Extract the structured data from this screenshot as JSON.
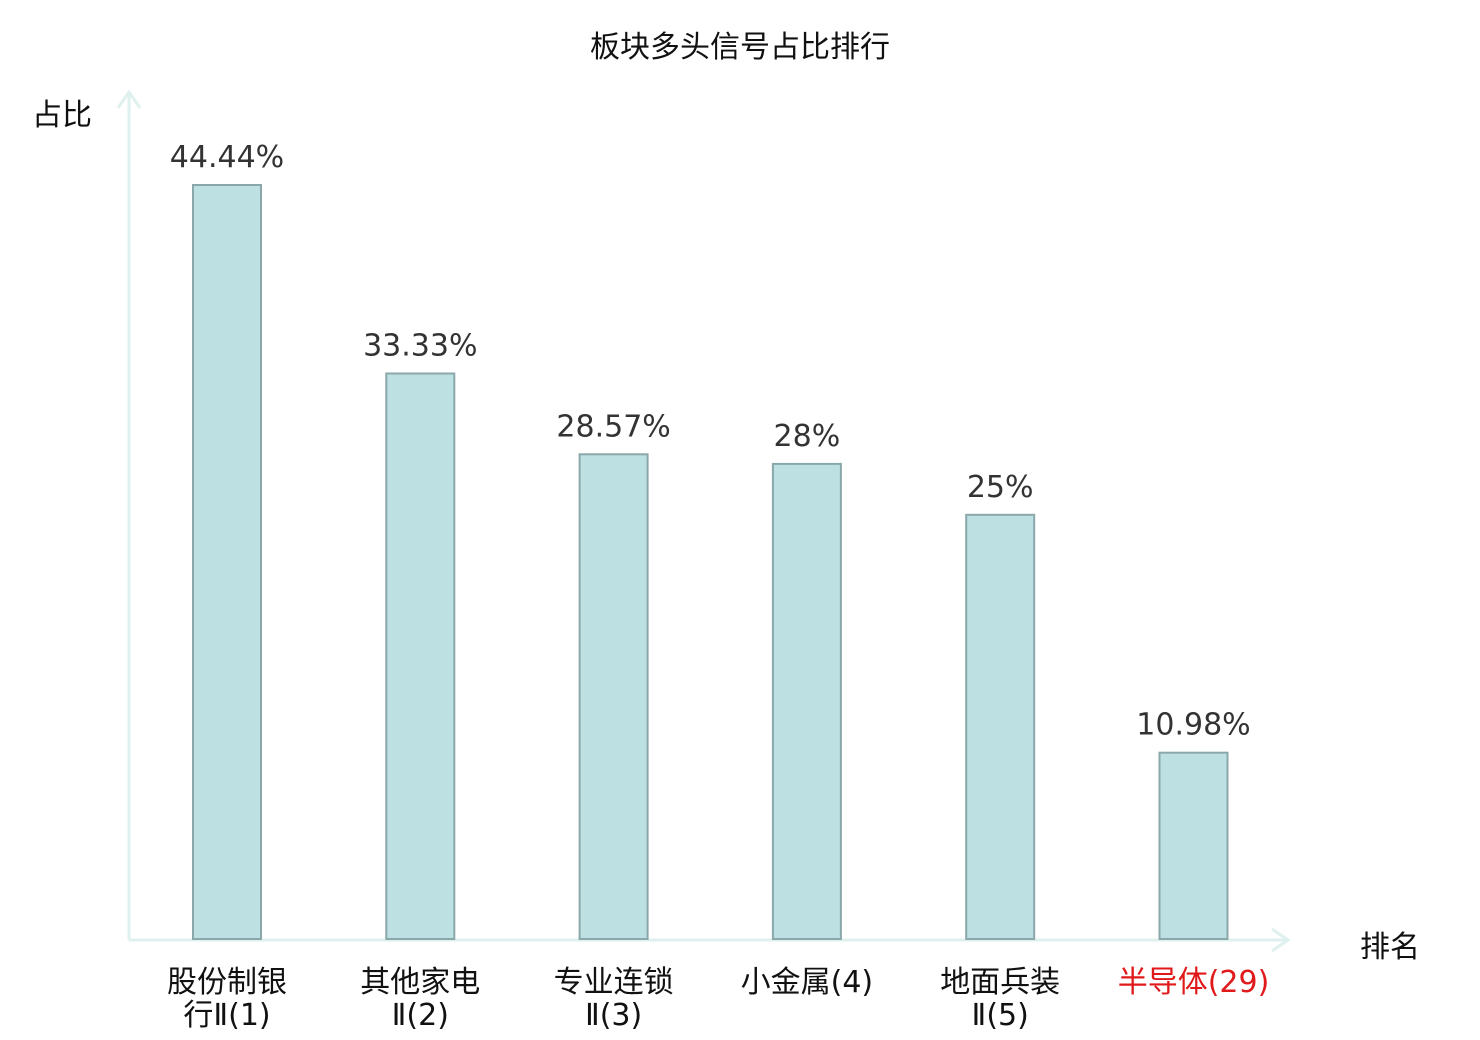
{
  "chart_data": {
    "type": "bar",
    "title": "板块多头信号占比排行",
    "ylabel": "占比",
    "xlabel": "排名",
    "categories": [
      [
        "股份制银",
        "行Ⅱ(1)"
      ],
      [
        "其他家电",
        "Ⅱ(2)"
      ],
      [
        "专业连锁",
        "Ⅱ(3)"
      ],
      [
        "小金属(4)"
      ],
      [
        "地面兵装",
        "Ⅱ(5)"
      ],
      [
        "半导体(29)"
      ]
    ],
    "values": [
      44.44,
      33.33,
      28.57,
      28,
      25,
      10.98
    ],
    "value_labels": [
      "44.44%",
      "33.33%",
      "28.57%",
      "28%",
      "25%",
      "10.98%"
    ],
    "highlight_index": 5,
    "ylim": [
      0,
      50
    ],
    "grid": false,
    "colors": {
      "bar_fill": "#bde0e3",
      "bar_stroke": "#8aa7aa",
      "axis": "#dff1ef",
      "highlight_text": "#e0191a"
    }
  }
}
